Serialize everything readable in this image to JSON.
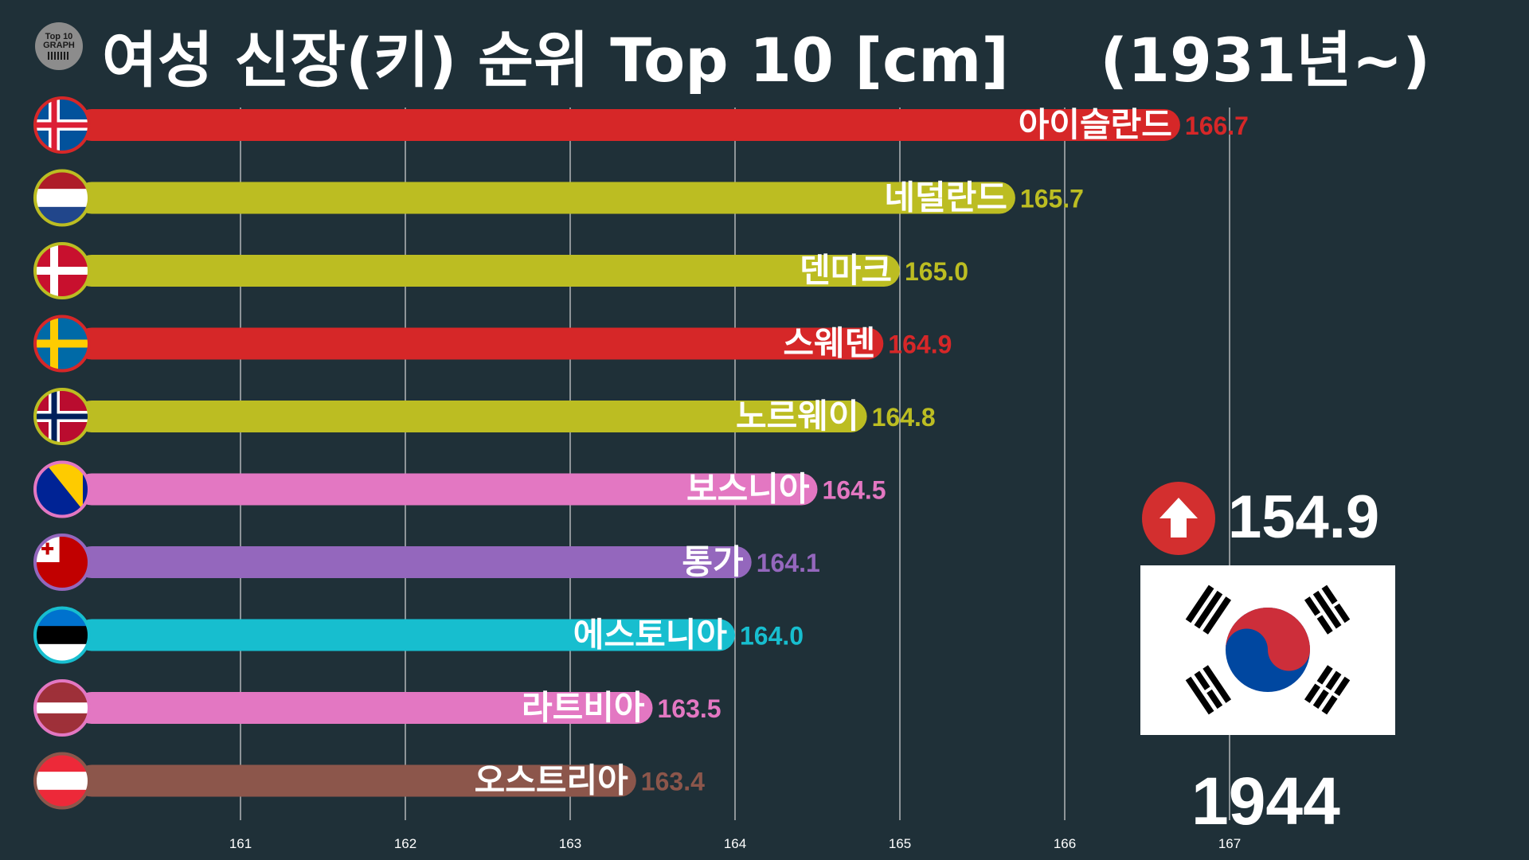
{
  "logo": {
    "line1": "Top 10",
    "line2": "GRAPH"
  },
  "title": "여성 신장(키) 순위 Top 10 [cm]",
  "period": "(1931년~)",
  "current": {
    "value": "154.9",
    "year": "1944",
    "trend_icon": "arrow-up-icon",
    "flag": "south-korea-flag"
  },
  "chart_data": {
    "type": "bar",
    "orientation": "horizontal",
    "title": "여성 신장(키) 순위 Top 10 [cm]",
    "xlim": [
      160,
      167.7
    ],
    "xticks": [
      161,
      162,
      163,
      164,
      165,
      166,
      167
    ],
    "grid": true,
    "categories": [
      "아이슬란드",
      "네덜란드",
      "덴마크",
      "스웨덴",
      "노르웨이",
      "보스니아",
      "통가",
      "에스토니아",
      "라트비아",
      "오스트리아"
    ],
    "values": [
      166.7,
      165.7,
      165.0,
      164.9,
      164.8,
      164.5,
      164.1,
      164.0,
      163.5,
      163.4
    ],
    "labels": [
      "166.7",
      "165.7",
      "165.0",
      "164.9",
      "164.8",
      "164.5",
      "164.1",
      "164.0",
      "163.5",
      "163.4"
    ],
    "colors": [
      "#d62728",
      "#bcbd22",
      "#bcbd22",
      "#d62728",
      "#bcbd22",
      "#e377c2",
      "#9467bd",
      "#17becf",
      "#e377c2",
      "#8c564b"
    ],
    "flags": [
      "iceland-flag",
      "netherlands-flag",
      "denmark-flag",
      "sweden-flag",
      "norway-flag",
      "bosnia-flag",
      "tonga-flag",
      "estonia-flag",
      "latvia-flag",
      "austria-flag"
    ]
  }
}
